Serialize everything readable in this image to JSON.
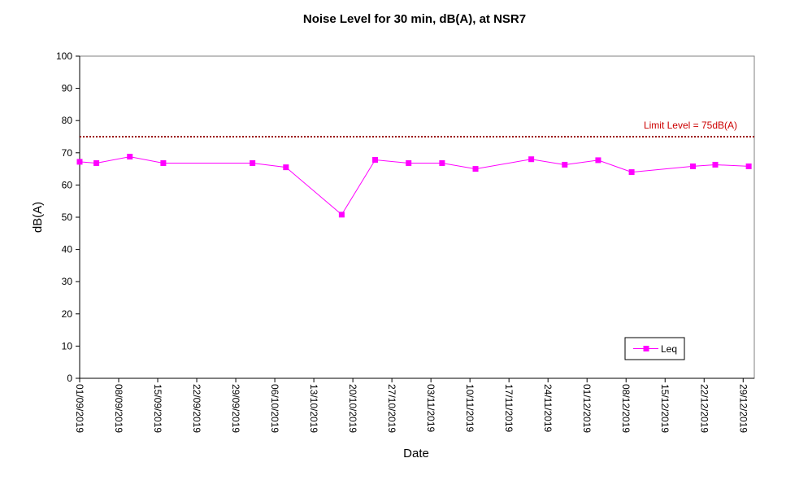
{
  "chart_data": {
    "type": "line",
    "title": "Noise Level for 30 min, dB(A), at NSR7",
    "xlabel": "Date",
    "ylabel": "dB(A)",
    "ylim": [
      0,
      100
    ],
    "yticks": [
      "0",
      "10",
      "20",
      "30",
      "40",
      "50",
      "60",
      "70",
      "80",
      "90",
      "100"
    ],
    "xlim": [
      "2019-09-01",
      "2019-12-31"
    ],
    "xticks": [
      {
        "date": "2019-09-01",
        "label": "01/09/2019"
      },
      {
        "date": "2019-09-08",
        "label": "08/09/2019"
      },
      {
        "date": "2019-09-15",
        "label": "15/09/2019"
      },
      {
        "date": "2019-09-22",
        "label": "22/09/2019"
      },
      {
        "date": "2019-09-29",
        "label": "29/09/2019"
      },
      {
        "date": "2019-10-06",
        "label": "06/10/2019"
      },
      {
        "date": "2019-10-13",
        "label": "13/10/2019"
      },
      {
        "date": "2019-10-20",
        "label": "20/10/2019"
      },
      {
        "date": "2019-10-27",
        "label": "27/10/2019"
      },
      {
        "date": "2019-11-03",
        "label": "03/11/2019"
      },
      {
        "date": "2019-11-10",
        "label": "10/11/2019"
      },
      {
        "date": "2019-11-17",
        "label": "17/11/2019"
      },
      {
        "date": "2019-11-24",
        "label": "24/11/2019"
      },
      {
        "date": "2019-12-01",
        "label": "01/12/2019"
      },
      {
        "date": "2019-12-08",
        "label": "08/12/2019"
      },
      {
        "date": "2019-12-15",
        "label": "15/12/2019"
      },
      {
        "date": "2019-12-22",
        "label": "22/12/2019"
      },
      {
        "date": "2019-12-29",
        "label": "29/12/2019"
      }
    ],
    "series": [
      {
        "name": "Leq",
        "color": "#ff00ff",
        "marker": "square",
        "points": [
          {
            "x": "2019-09-01",
            "y": 67.2
          },
          {
            "x": "2019-09-04",
            "y": 66.8
          },
          {
            "x": "2019-09-10",
            "y": 68.8
          },
          {
            "x": "2019-09-16",
            "y": 66.8
          },
          {
            "x": "2019-10-02",
            "y": 66.8
          },
          {
            "x": "2019-10-08",
            "y": 65.5
          },
          {
            "x": "2019-10-18",
            "y": 50.8
          },
          {
            "x": "2019-10-24",
            "y": 67.8
          },
          {
            "x": "2019-10-30",
            "y": 66.8
          },
          {
            "x": "2019-11-05",
            "y": 66.8
          },
          {
            "x": "2019-11-11",
            "y": 65.0
          },
          {
            "x": "2019-11-21",
            "y": 68.0
          },
          {
            "x": "2019-11-27",
            "y": 66.3
          },
          {
            "x": "2019-12-03",
            "y": 67.7
          },
          {
            "x": "2019-12-09",
            "y": 64.0
          },
          {
            "x": "2019-12-20",
            "y": 65.8
          },
          {
            "x": "2019-12-24",
            "y": 66.3
          },
          {
            "x": "2019-12-30",
            "y": 65.8
          }
        ]
      }
    ],
    "limit": {
      "value": 75,
      "label": "Limit Level  = 75dB(A)",
      "color": "#990000",
      "label_color": "#cc0000"
    },
    "legend": {
      "position": "bottom-right"
    },
    "grid": false
  }
}
